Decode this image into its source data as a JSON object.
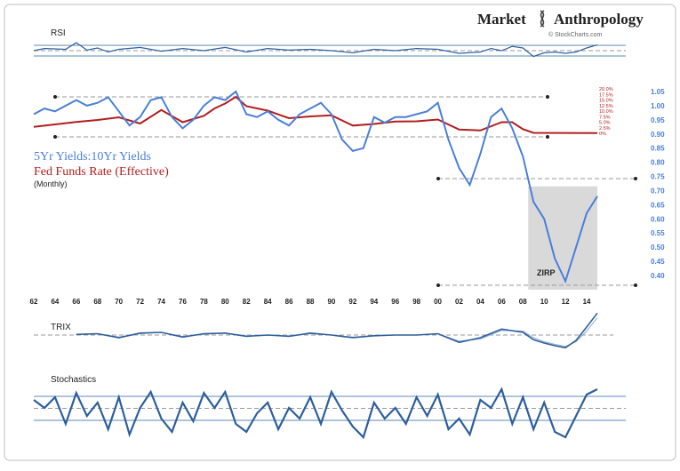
{
  "brand": {
    "name_part1": "Market",
    "name_part2": "Anthropology",
    "source_credit": "© StockCharts.com"
  },
  "colors": {
    "ratio": "#4a7fd9",
    "fedfunds": "#b21e1e",
    "indicator": "#2e5f9c",
    "indicator_signal": "#8aa9cf",
    "zirp_shade": "#d9d9d9",
    "grid": "#5b8ab7",
    "dashed": "#9a9a9a",
    "frame": "#bfbfbf"
  },
  "chart_data": [
    {
      "type": "line",
      "panel": "rsi",
      "title": "RSI",
      "x_range": [
        1962,
        2015
      ],
      "y_range": [
        0,
        100
      ],
      "reference_lines": [
        70,
        50,
        30
      ],
      "series": [
        {
          "x": [
            1962,
            1963,
            1965,
            1966,
            1967,
            1968,
            1969,
            1970,
            1972,
            1974,
            1976,
            1978,
            1980,
            1982,
            1984,
            1986,
            1988,
            1990,
            1992,
            1994,
            1996,
            1998,
            2000,
            2002,
            2004,
            2005,
            2006,
            2007,
            2008,
            2009,
            2010,
            2011,
            2012,
            2013,
            2014,
            2015
          ],
          "values": [
            50,
            58,
            55,
            80,
            52,
            60,
            45,
            55,
            62,
            48,
            58,
            50,
            62,
            45,
            58,
            52,
            55,
            50,
            42,
            55,
            50,
            58,
            55,
            40,
            45,
            58,
            50,
            66,
            60,
            28,
            42,
            45,
            40,
            45,
            60,
            72
          ]
        }
      ]
    },
    {
      "type": "line",
      "panel": "main",
      "x_range": [
        1962,
        2015
      ],
      "xticks": [
        "62",
        "64",
        "66",
        "68",
        "70",
        "72",
        "74",
        "76",
        "78",
        "80",
        "82",
        "84",
        "86",
        "88",
        "90",
        "92",
        "94",
        "96",
        "98",
        "00",
        "02",
        "04",
        "06",
        "08",
        "10",
        "12",
        "14"
      ],
      "yticks_right": [
        "1.05",
        "1.00",
        "0.95",
        "0.90",
        "0.85",
        "0.80",
        "0.75",
        "0.70",
        "0.65",
        "0.60",
        "0.55",
        "0.50",
        "0.45",
        "0.40"
      ],
      "yticks_fedfunds": [
        "20.0%",
        "17.5%",
        "15.0%",
        "12.5%",
        "10.0%",
        "7.5%",
        "5.0%",
        "2.5%",
        "0%"
      ],
      "legend": [
        "5Yr Yields:10Yr Yields",
        "Fed Funds Rate (Effective)",
        "(Monthly)"
      ],
      "annotation": "ZIRP",
      "shaded_region": [
        2008.5,
        2015
      ],
      "series": [
        {
          "name": "5Yr Yields:10Yr Yields",
          "x": [
            1962,
            1963,
            1964,
            1966,
            1967,
            1968,
            1969,
            1970,
            1971,
            1972,
            1973,
            1974,
            1975,
            1976,
            1977,
            1978,
            1979,
            1980,
            1981,
            1982,
            1983,
            1984,
            1985,
            1986,
            1987,
            1988,
            1989,
            1990,
            1991,
            1992,
            1993,
            1994,
            1995,
            1996,
            1997,
            1998,
            1999,
            2000,
            2001,
            2002,
            2003,
            2004,
            2005,
            2006,
            2007,
            2008,
            2009,
            2010,
            2011,
            2012,
            2013,
            2014,
            2015
          ],
          "values": [
            0.97,
            0.99,
            0.98,
            1.02,
            1.0,
            1.01,
            1.03,
            0.98,
            0.93,
            0.96,
            1.02,
            1.03,
            0.96,
            0.92,
            0.95,
            1.0,
            1.03,
            1.02,
            1.05,
            0.97,
            0.96,
            0.98,
            0.95,
            0.93,
            0.97,
            0.99,
            1.01,
            0.97,
            0.88,
            0.84,
            0.85,
            0.96,
            0.94,
            0.96,
            0.96,
            0.97,
            0.98,
            1.01,
            0.88,
            0.78,
            0.72,
            0.83,
            0.96,
            0.99,
            0.92,
            0.82,
            0.66,
            0.6,
            0.46,
            0.38,
            0.5,
            0.62,
            0.68
          ]
        },
        {
          "name": "Fed Funds Rate (Effective)",
          "x": [
            1962,
            1966,
            1968,
            1970,
            1972,
            1974,
            1976,
            1978,
            1979,
            1980,
            1981,
            1982,
            1984,
            1986,
            1988,
            1990,
            1992,
            1994,
            1996,
            1998,
            2000,
            2002,
            2004,
            2006,
            2007,
            2008,
            2009,
            2015
          ],
          "values": [
            2.9,
            5.1,
            6.0,
            7.2,
            4.4,
            10.5,
            5.0,
            7.9,
            11.2,
            13.4,
            16.4,
            12.2,
            10.2,
            6.8,
            7.6,
            8.1,
            3.5,
            4.2,
            5.3,
            5.4,
            6.2,
            1.7,
            1.3,
            5.0,
            5.0,
            1.9,
            0.2,
            0.1
          ]
        }
      ]
    },
    {
      "type": "line",
      "panel": "trix",
      "title": "TRIX",
      "x_range": [
        1962,
        2015
      ],
      "y_range": [
        -4,
        4
      ],
      "reference_lines": [
        0
      ],
      "series": [
        {
          "x": [
            1966,
            1968,
            1970,
            1972,
            1974,
            1976,
            1978,
            1980,
            1982,
            1984,
            1986,
            1988,
            1990,
            1992,
            1994,
            1996,
            1998,
            2000,
            2002,
            2004,
            2006,
            2008,
            2009,
            2010,
            2011,
            2012,
            2013,
            2014,
            2015
          ],
          "values": [
            0.1,
            0.2,
            -0.4,
            0.3,
            0.4,
            -0.3,
            0.2,
            0.3,
            -0.2,
            0.0,
            -0.2,
            0.3,
            0.0,
            -0.4,
            -0.1,
            0.0,
            0.0,
            0.2,
            -1.1,
            -0.4,
            0.9,
            0.4,
            -0.7,
            -1.2,
            -1.6,
            -1.9,
            -0.8,
            1.2,
            3.3
          ]
        },
        {
          "x": [
            1966,
            1968,
            1970,
            1972,
            1974,
            1976,
            1978,
            1980,
            1982,
            1984,
            1986,
            1988,
            1990,
            1992,
            1994,
            1996,
            1998,
            2000,
            2002,
            2004,
            2006,
            2008,
            2009,
            2010,
            2011,
            2012,
            2013,
            2014,
            2015
          ],
          "values": [
            0.1,
            0.2,
            -0.3,
            0.2,
            0.4,
            -0.2,
            0.1,
            0.3,
            -0.1,
            0.0,
            -0.1,
            0.2,
            0.0,
            -0.3,
            -0.1,
            0.0,
            0.0,
            0.2,
            -0.9,
            -0.6,
            0.7,
            0.6,
            -0.4,
            -1.0,
            -1.4,
            -1.7,
            -1.0,
            0.6,
            2.6
          ]
        }
      ]
    },
    {
      "type": "line",
      "panel": "stochastics",
      "title": "Stochastics",
      "x_range": [
        1962,
        2015
      ],
      "y_range": [
        0,
        100
      ],
      "reference_lines": [
        80,
        50,
        20
      ],
      "series": [
        {
          "x": [
            1962,
            1963,
            1964,
            1965,
            1966,
            1967,
            1968,
            1969,
            1970,
            1971,
            1972,
            1973,
            1974,
            1975,
            1976,
            1977,
            1978,
            1979,
            1980,
            1981,
            1982,
            1983,
            1984,
            1985,
            1986,
            1987,
            1988,
            1989,
            1990,
            1991,
            1992,
            1993,
            1994,
            1995,
            1996,
            1997,
            1998,
            1999,
            2000,
            2001,
            2002,
            2003,
            2004,
            2005,
            2006,
            2007,
            2008,
            2009,
            2010,
            2011,
            2012,
            2013,
            2014,
            2015
          ],
          "values": [
            75,
            60,
            80,
            30,
            88,
            45,
            70,
            20,
            80,
            10,
            60,
            90,
            40,
            15,
            70,
            35,
            88,
            60,
            90,
            30,
            15,
            50,
            70,
            20,
            60,
            40,
            80,
            30,
            90,
            55,
            25,
            5,
            70,
            40,
            60,
            30,
            80,
            45,
            85,
            20,
            40,
            10,
            75,
            60,
            95,
            30,
            80,
            20,
            70,
            15,
            5,
            45,
            85,
            95
          ]
        }
      ]
    }
  ]
}
